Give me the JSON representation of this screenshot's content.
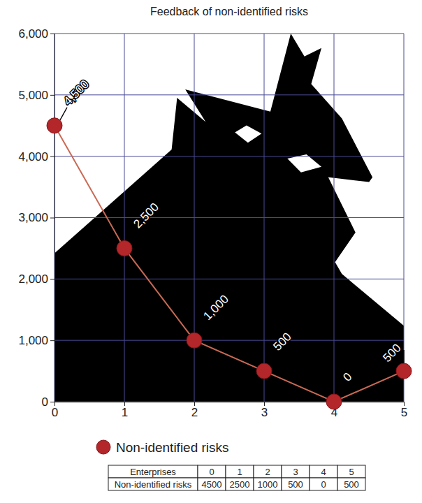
{
  "chart_data": {
    "type": "line",
    "title": "Feedback of non-identified risks",
    "x": [
      0,
      1,
      2,
      3,
      4,
      5
    ],
    "xlim": [
      0,
      5
    ],
    "xticks": [
      0,
      1,
      2,
      3,
      4,
      5
    ],
    "ylim": [
      0,
      6000
    ],
    "yticks": [
      0,
      {
        "value": 1000,
        "label": "1,000"
      },
      {
        "value": 2000,
        "label": "2,000"
      },
      {
        "value": 3000,
        "label": "3,000"
      },
      {
        "value": 4000,
        "label": "4,000"
      },
      {
        "value": 5000,
        "label": "5,000"
      },
      {
        "value": 6000,
        "label": "6,000"
      }
    ],
    "grid": true,
    "legend": "bottom",
    "data_labels": true,
    "series": [
      {
        "name": "Non-identified risks",
        "color": "#b3262a",
        "marker": "circle",
        "line_style": "solid",
        "values": [
          4500,
          2500,
          1000,
          500,
          0,
          500
        ],
        "value_labels": [
          "4,500",
          "2,500",
          "1,000",
          "500",
          "0",
          "500"
        ]
      }
    ]
  },
  "table": {
    "rows": [
      [
        "Enterprises",
        0,
        1,
        2,
        3,
        4,
        5
      ],
      [
        "Non-identified risks",
        4500,
        2500,
        1000,
        500,
        0,
        500
      ]
    ]
  }
}
